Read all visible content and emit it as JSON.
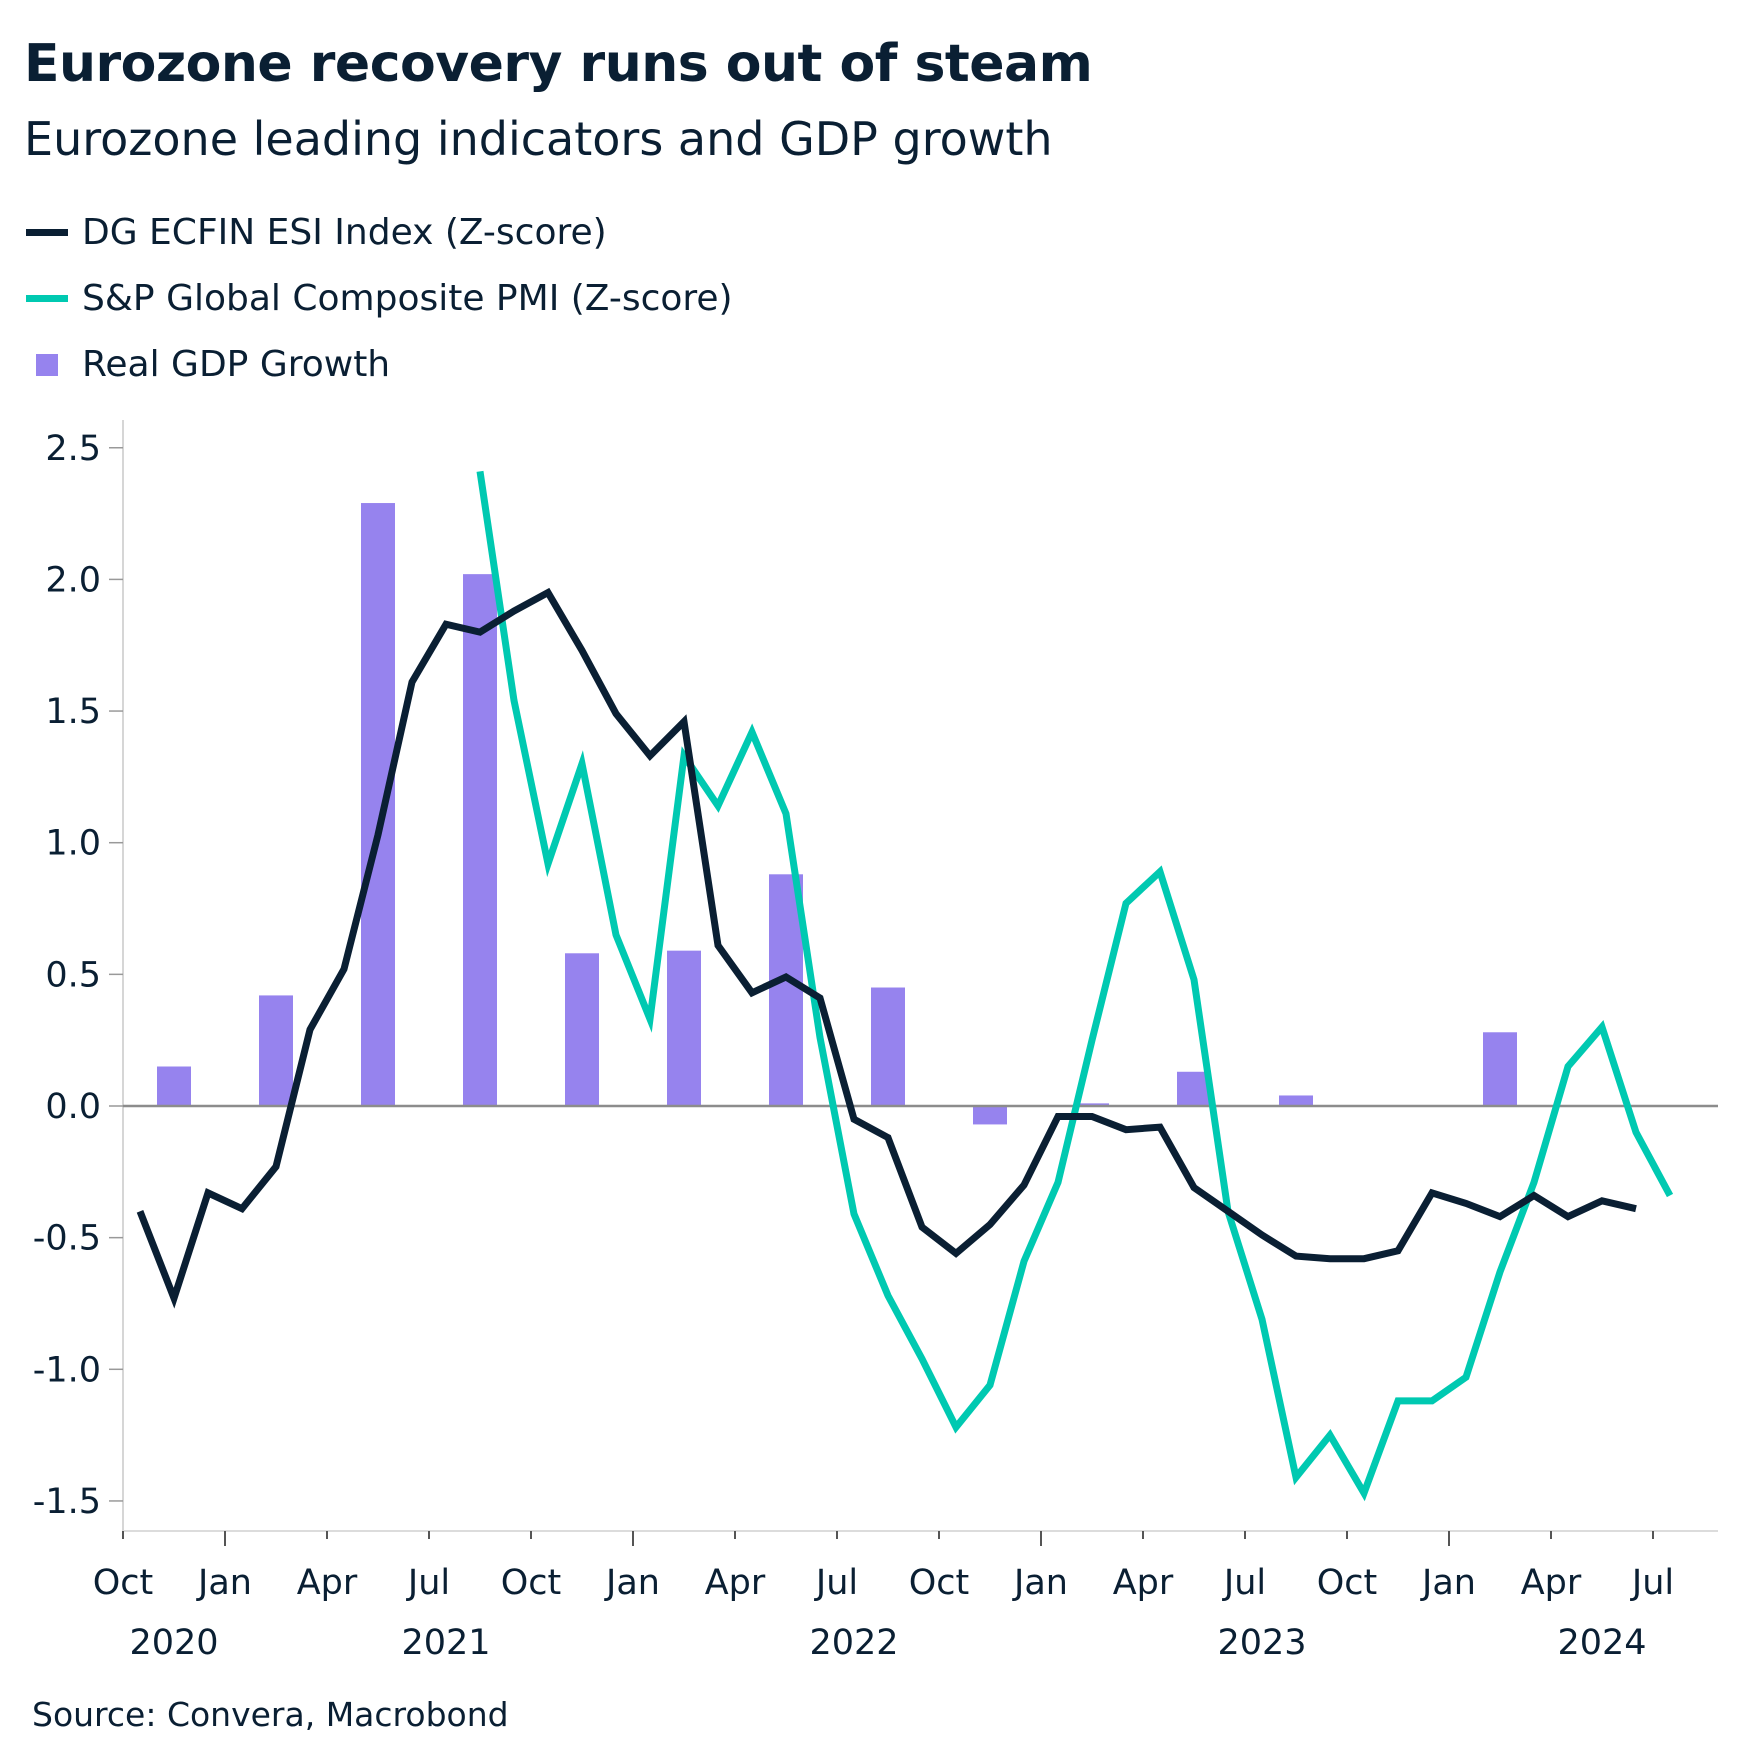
{
  "title": "Eurozone recovery runs out of steam",
  "subtitle": "Eurozone leading indicators and GDP growth",
  "source": "Source: Convera, Macrobond",
  "chart_data": {
    "type": "line+bar",
    "ylim": [
      -1.6,
      2.6
    ],
    "yticks": [
      "2.5",
      "2.0",
      "1.5",
      "1.0",
      "0.5",
      "0.0",
      "-0.5",
      "-1.0",
      "-1.5"
    ],
    "ytick_values": [
      2.5,
      2.0,
      1.5,
      1.0,
      0.5,
      0.0,
      -0.5,
      -1.0,
      -1.5
    ],
    "xticks": [
      "Oct",
      "Jan",
      "Apr",
      "Jul",
      "Oct",
      "Jan",
      "Apr",
      "Jul",
      "Oct",
      "Jan",
      "Apr",
      "Jul",
      "Oct",
      "Jan",
      "Apr",
      "Jul"
    ],
    "xtick_dates": [
      "2020-10",
      "2021-01",
      "2021-04",
      "2021-07",
      "2021-10",
      "2022-01",
      "2022-04",
      "2022-07",
      "2022-10",
      "2023-01",
      "2023-04",
      "2023-07",
      "2023-10",
      "2024-01",
      "2024-04",
      "2024-07"
    ],
    "year_labels": [
      {
        "label": "2020",
        "date": "2020-11"
      },
      {
        "label": "2021",
        "date": "2021-07"
      },
      {
        "label": "2022",
        "date": "2022-07"
      },
      {
        "label": "2023",
        "date": "2023-07"
      },
      {
        "label": "2024",
        "date": "2024-05"
      }
    ],
    "grid": false,
    "legend_position": "top-left",
    "series": [
      {
        "name": "DG ECFIN ESI Index (Z-score)",
        "type": "line",
        "color": "#0a1f33",
        "start": "2020-10",
        "values": [
          -0.4,
          -0.73,
          -0.33,
          -0.39,
          -0.23,
          0.29,
          0.52,
          1.03,
          1.61,
          1.83,
          1.8,
          1.88,
          1.95,
          1.73,
          1.49,
          1.33,
          1.46,
          0.61,
          0.43,
          0.49,
          0.41,
          -0.05,
          -0.12,
          -0.46,
          -0.56,
          -0.45,
          -0.3,
          -0.04,
          -0.04,
          -0.09,
          -0.08,
          -0.31,
          -0.4,
          -0.49,
          -0.57,
          -0.58,
          -0.58,
          -0.55,
          -0.33,
          -0.37,
          -0.42,
          -0.34,
          -0.42,
          -0.36,
          -0.39
        ]
      },
      {
        "name": "S&P Global Composite PMI (Z-score)",
        "type": "line",
        "color": "#00c9b1",
        "start": "2021-08",
        "values": [
          2.41,
          1.54,
          0.92,
          1.3,
          0.65,
          0.33,
          1.33,
          1.14,
          1.42,
          1.11,
          0.26,
          -0.41,
          -0.72,
          -0.96,
          -1.22,
          -1.06,
          -0.59,
          -0.29,
          0.25,
          0.77,
          0.89,
          0.48,
          -0.4,
          -0.81,
          -1.41,
          -1.25,
          -1.47,
          -1.12,
          -1.12,
          -1.03,
          -0.63,
          -0.29,
          0.15,
          0.3,
          -0.1,
          -0.34
        ]
      },
      {
        "name": "Real GDP Growth",
        "type": "bar",
        "color": "#9683ee",
        "quarters": [
          "2020Q4",
          "2021Q1",
          "2021Q2",
          "2021Q3",
          "2021Q4",
          "2022Q1",
          "2022Q2",
          "2022Q3",
          "2022Q4",
          "2023Q1",
          "2023Q2",
          "2023Q3",
          "2023Q4",
          "2024Q1"
        ],
        "values": [
          0.15,
          0.42,
          2.29,
          2.02,
          0.58,
          0.59,
          0.88,
          0.45,
          -0.07,
          0.01,
          0.13,
          0.04,
          0.0,
          0.28
        ]
      }
    ]
  }
}
